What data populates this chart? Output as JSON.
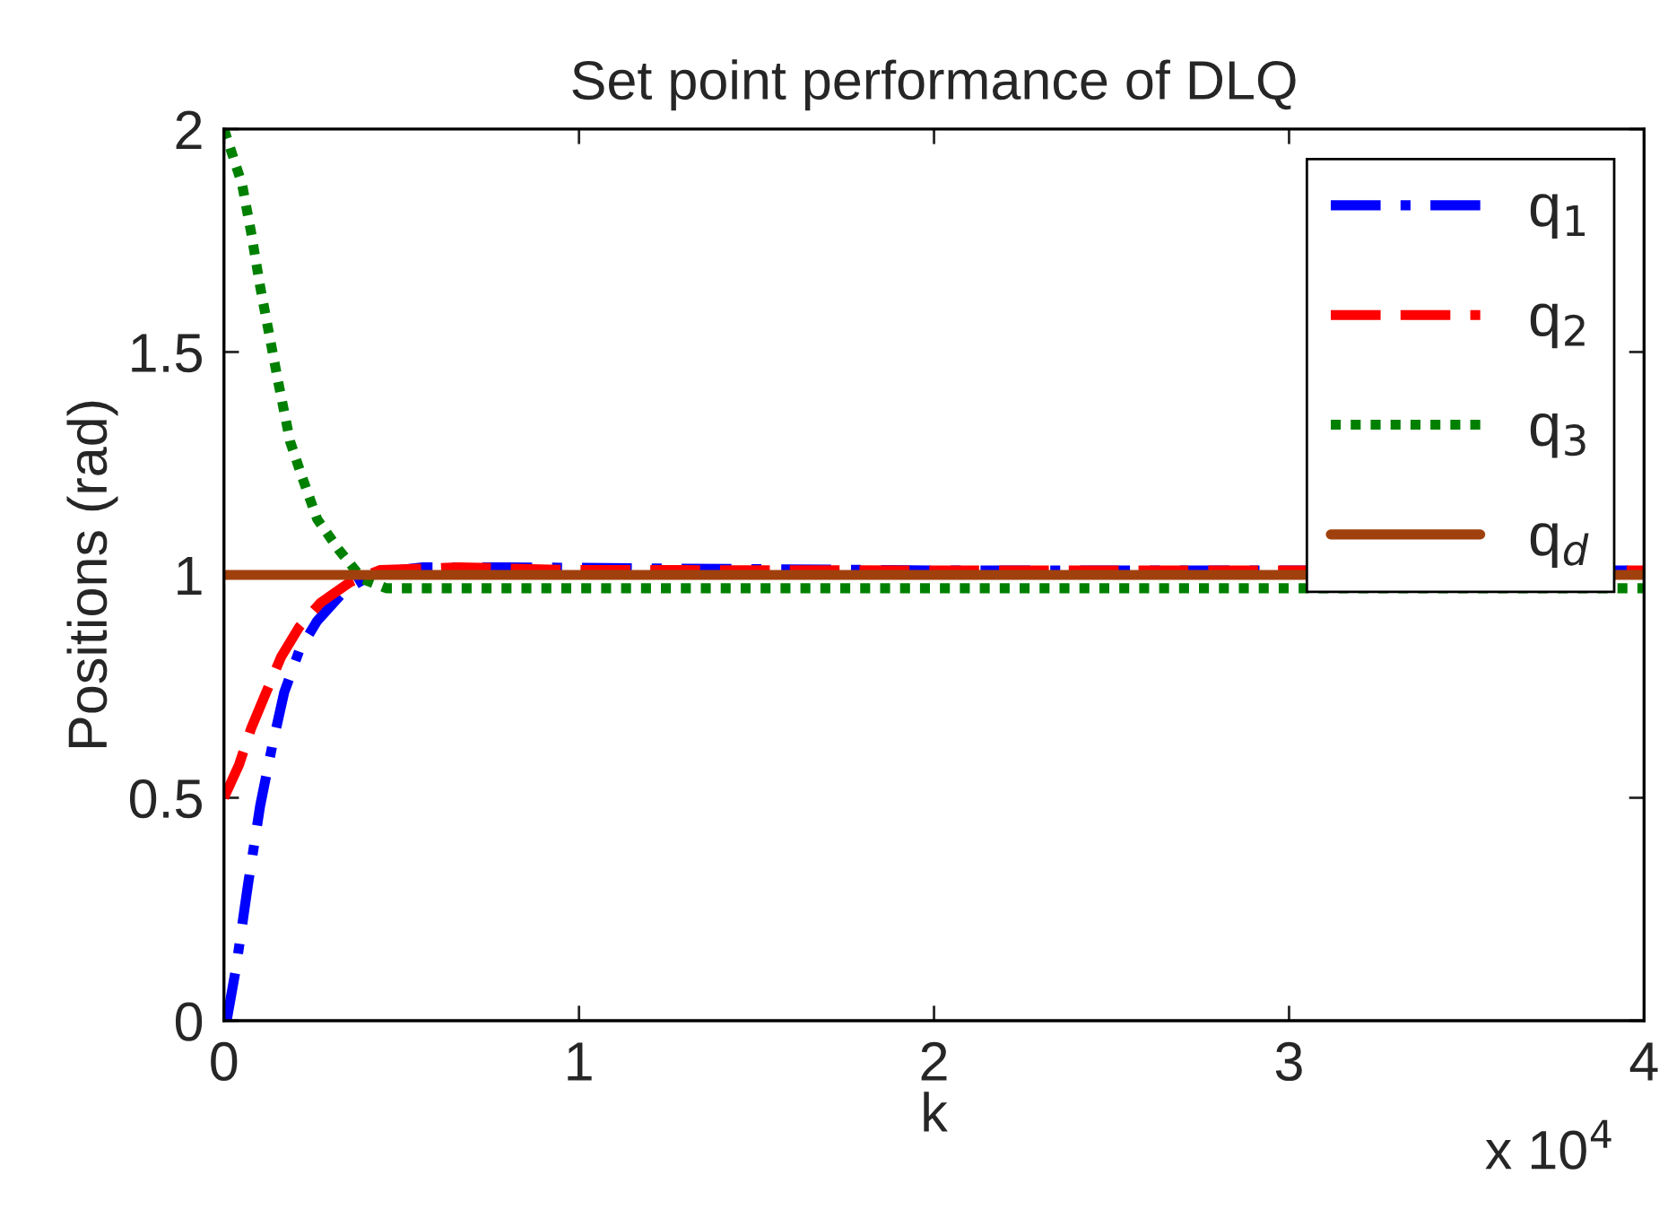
{
  "chart_data": {
    "type": "line",
    "title": "Set point performance of DLQ",
    "xlabel": "k",
    "ylabel": "Positions (rad)",
    "annotations": [
      "x 10$^{4}$"
    ],
    "xlim": [
      0,
      4
    ],
    "xticks": [
      0,
      1,
      2,
      3,
      4
    ],
    "ylim": [
      0,
      2
    ],
    "yticks": [
      0,
      0.5,
      1,
      1.5,
      2
    ],
    "grid": false,
    "legend": "top right",
    "marker": "none",
    "series": [
      {
        "name": "q$_{1}$",
        "color": "#0000ff",
        "line_style": "dashdot",
        "x": [
          0,
          0.0085,
          0.0339,
          0.0678,
          0.1017,
          0.1356,
          0.1695,
          0.2119,
          0.2627,
          0.339,
          0.4237,
          0.5593,
          0.7966,
          2,
          4
        ],
        "values": [
          0,
          0.004,
          0.118,
          0.306,
          0.481,
          0.615,
          0.736,
          0.83,
          0.897,
          0.964,
          1.004,
          1.017,
          1.017,
          1.01,
          1.01
        ]
      },
      {
        "name": "q$_{2}$",
        "color": "#ff0000",
        "line_style": "dashed",
        "x": [
          0,
          0.0424,
          0.0763,
          0.1186,
          0.161,
          0.2119,
          0.2712,
          0.3559,
          0.4407,
          0.661,
          0.9661,
          2,
          4
        ],
        "values": [
          0.5,
          0.574,
          0.655,
          0.736,
          0.816,
          0.883,
          0.937,
          0.984,
          1.011,
          1.017,
          1.011,
          1.01,
          1.01
        ]
      },
      {
        "name": "q$_{3}$",
        "color": "#008000",
        "line_style": "dotted",
        "x": [
          0,
          0.0508,
          0.0763,
          0.1017,
          0.1271,
          0.1525,
          0.1864,
          0.2203,
          0.2627,
          0.322,
          0.3898,
          0.4576,
          0.6271,
          2,
          4
        ],
        "values": [
          2,
          1.877,
          1.769,
          1.648,
          1.541,
          1.434,
          1.299,
          1.219,
          1.125,
          1.058,
          0.991,
          0.97,
          0.97,
          0.97,
          0.97
        ]
      },
      {
        "name": "q$_{d}$",
        "color": "#a0410d",
        "line_style": "solid",
        "x": [
          0,
          4
        ],
        "values": [
          1,
          1
        ]
      }
    ]
  }
}
